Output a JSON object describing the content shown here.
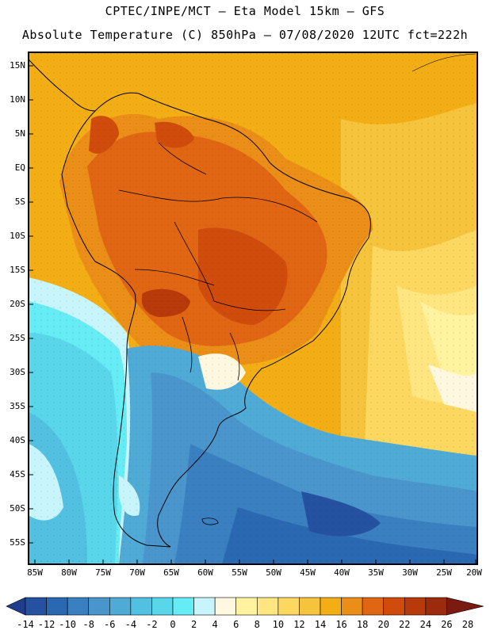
{
  "header": {
    "line1": "CPTEC/INPE/MCT – Eta Model 15km – GFS",
    "line2": "Absolute Temperature (C) 850hPa – 07/08/2020 12UTC fct=222h"
  },
  "map": {
    "lat_labels": [
      "15N",
      "10N",
      "5N",
      "EQ",
      "5S",
      "10S",
      "15S",
      "20S",
      "25S",
      "30S",
      "35S",
      "40S",
      "45S",
      "50S",
      "55S"
    ],
    "lon_labels": [
      "85W",
      "80W",
      "75W",
      "70W",
      "65W",
      "60W",
      "55W",
      "50W",
      "45W",
      "40W",
      "35W",
      "30W",
      "25W",
      "20W"
    ]
  },
  "colorbar": {
    "ticks": [
      "-14",
      "-12",
      "-10",
      "-8",
      "-6",
      "-4",
      "-2",
      "0",
      "2",
      "4",
      "6",
      "8",
      "10",
      "12",
      "14",
      "16",
      "18",
      "20",
      "22",
      "24",
      "26",
      "28"
    ],
    "colors": [
      "#1f3d8c",
      "#2452a0",
      "#2b68b2",
      "#3a7fc0",
      "#4a96cc",
      "#4fabd6",
      "#52c0e0",
      "#5ad6ea",
      "#66ecf4",
      "#c8f4fb",
      "#fff8e0",
      "#fff3a0",
      "#ffe680",
      "#fdd860",
      "#f6c43c",
      "#f2ae14",
      "#ea8e18",
      "#e06614",
      "#cf4c0c",
      "#b83a0a",
      "#9c2a0c",
      "#7a1a10"
    ]
  }
}
